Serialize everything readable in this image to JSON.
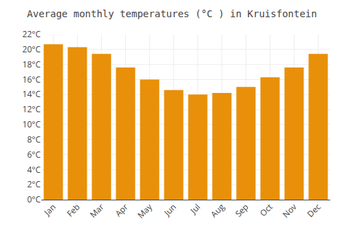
{
  "chart_data": {
    "type": "bar",
    "title": "Average monthly temperatures (°C ) in Kruisfontein",
    "categories": [
      "Jan",
      "Feb",
      "Mar",
      "Apr",
      "May",
      "Jun",
      "Jul",
      "Aug",
      "Sep",
      "Oct",
      "Nov",
      "Dec"
    ],
    "values": [
      20.7,
      20.3,
      19.4,
      17.6,
      16.0,
      14.6,
      14.0,
      14.2,
      15.0,
      16.3,
      17.6,
      19.4
    ],
    "color": "#E8900A",
    "ylim": [
      0,
      22
    ],
    "yticks": [
      {
        "value": 0,
        "label": "0°C"
      },
      {
        "value": 2,
        "label": "2°C"
      },
      {
        "value": 4,
        "label": "4°C"
      },
      {
        "value": 6,
        "label": "6°C"
      },
      {
        "value": 8,
        "label": "8°C"
      },
      {
        "value": 10,
        "label": "10°C"
      },
      {
        "value": 12,
        "label": "12°C"
      },
      {
        "value": 14,
        "label": "14°C"
      },
      {
        "value": 16,
        "label": "16°C"
      },
      {
        "value": 18,
        "label": "18°C"
      },
      {
        "value": 20,
        "label": "20°C"
      },
      {
        "value": 22,
        "label": "22°C"
      }
    ],
    "grid": true
  }
}
